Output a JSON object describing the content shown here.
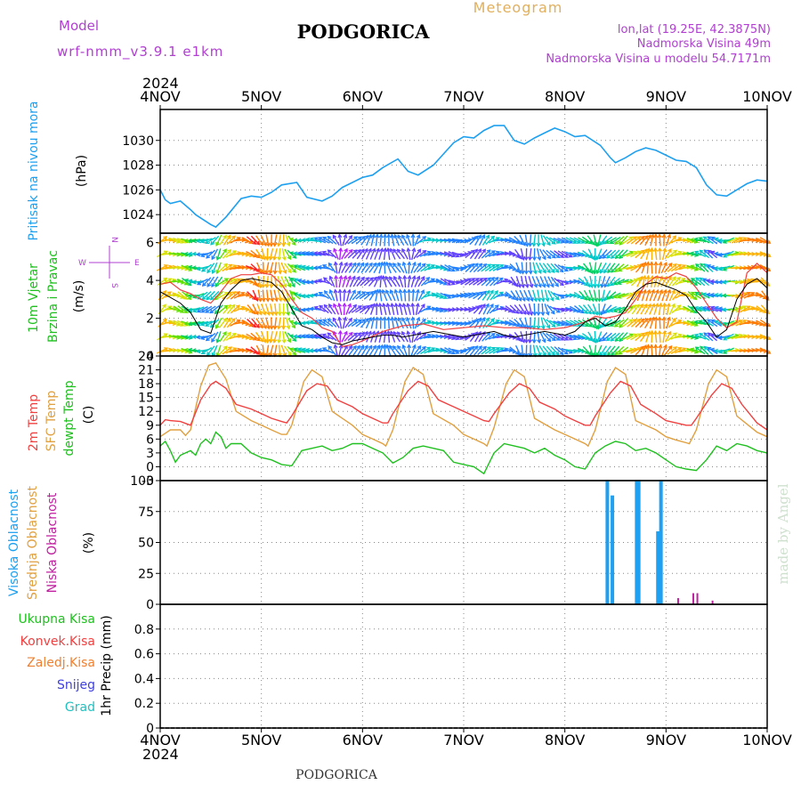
{
  "header": {
    "model_label": "Model",
    "model_name": "wrf-nmm_v3.9.1  e1km",
    "station": "PODGORICA",
    "product": "Meteogram",
    "lonlat": "lon,lat (19.25E, 42.3875N)",
    "elevation": "Nadmorska Visina 49m",
    "model_elevation": "Nadmorska Visina u modelu 54.7171m",
    "year_top": "2024",
    "year_bottom": "2024",
    "footer_station": "PODGORICA",
    "credit": "made by Angel"
  },
  "colors": {
    "pressure": "#1ea0f0",
    "temp2m": "#f04040",
    "sfc_temp": "#e0a040",
    "dewpt": "#20c020",
    "high_cloud": "#20a0f0",
    "mid_cloud": "#e0a040",
    "low_cloud": "#c020a0",
    "wind_speed": "#000000",
    "gust": "#f04040",
    "title_purple": "#b040d0",
    "title_gold": "#e0b060"
  },
  "chart_data": [
    {
      "type": "line",
      "title": "",
      "ylabel": "(hPa)",
      "side_label": "Pritisak na nivou mora",
      "ylim": [
        1022.5,
        1032.5
      ],
      "yticks": [
        1024,
        1026,
        1028,
        1030
      ],
      "x_range_days": [
        0,
        6
      ],
      "x_ticks": [
        "4NOV",
        "5NOV",
        "6NOV",
        "7NOV",
        "8NOV",
        "9NOV",
        "10NOV"
      ],
      "series": [
        {
          "key": "pressure",
          "x": [
            0,
            0.05,
            0.1,
            0.2,
            0.3,
            0.35,
            0.5,
            0.55,
            0.65,
            0.8,
            0.9,
            1.0,
            1.1,
            1.2,
            1.35,
            1.45,
            1.6,
            1.7,
            1.8,
            1.9,
            2.0,
            2.1,
            2.2,
            2.35,
            2.45,
            2.55,
            2.7,
            2.8,
            2.9,
            3.0,
            3.1,
            3.2,
            3.3,
            3.4,
            3.5,
            3.6,
            3.7,
            3.8,
            3.9,
            4.0,
            4.1,
            4.2,
            4.35,
            4.45,
            4.5,
            4.6,
            4.7,
            4.8,
            4.9,
            5.0,
            5.1,
            5.2,
            5.3,
            5.4,
            5.5,
            5.6,
            5.7,
            5.8,
            5.9,
            6.0
          ],
          "values": [
            1026.0,
            1025.2,
            1024.9,
            1025.1,
            1024.4,
            1024.0,
            1023.2,
            1023.0,
            1023.8,
            1025.3,
            1025.5,
            1025.4,
            1025.8,
            1026.4,
            1026.6,
            1025.4,
            1025.1,
            1025.5,
            1026.2,
            1026.6,
            1027.0,
            1027.2,
            1027.8,
            1028.5,
            1027.5,
            1027.2,
            1028.0,
            1028.9,
            1029.8,
            1030.3,
            1030.2,
            1030.8,
            1031.2,
            1031.2,
            1030.0,
            1029.7,
            1030.2,
            1030.6,
            1031.0,
            1030.7,
            1030.3,
            1030.4,
            1029.6,
            1028.6,
            1028.2,
            1028.6,
            1029.1,
            1029.4,
            1029.2,
            1028.8,
            1028.4,
            1028.3,
            1027.8,
            1026.4,
            1025.6,
            1025.5,
            1026.0,
            1026.5,
            1026.8,
            1026.7
          ]
        }
      ]
    },
    {
      "type": "line",
      "title": "",
      "ylabel": "(m/s)",
      "side_labels": [
        "10m Vjetar",
        "Brzina i Pravac"
      ],
      "compass_labels": [
        "W",
        "E",
        "N",
        "S"
      ],
      "ylim": [
        0,
        6.5
      ],
      "yticks": [
        0,
        2,
        4,
        6
      ],
      "x_range_days": [
        0,
        6
      ],
      "series": [
        {
          "key": "wind_speed",
          "x": [
            0,
            0.1,
            0.2,
            0.3,
            0.4,
            0.5,
            0.6,
            0.7,
            0.8,
            0.9,
            1.0,
            1.1,
            1.2,
            1.3,
            1.4,
            1.5,
            1.6,
            1.7,
            1.8,
            1.9,
            2.0,
            2.1,
            2.2,
            2.3,
            2.4,
            2.5,
            2.6,
            2.7,
            2.8,
            2.9,
            3.0,
            3.1,
            3.2,
            3.3,
            3.4,
            3.5,
            3.6,
            3.7,
            3.8,
            3.9,
            4.0,
            4.1,
            4.2,
            4.3,
            4.4,
            4.5,
            4.6,
            4.7,
            4.8,
            4.9,
            5.0,
            5.1,
            5.2,
            5.3,
            5.4,
            5.5,
            5.6,
            5.7,
            5.8,
            5.9,
            6.0
          ],
          "values": [
            3.4,
            3.1,
            2.8,
            2.3,
            1.4,
            1.2,
            2.8,
            3.5,
            4.0,
            4.1,
            4.0,
            3.9,
            3.4,
            2.5,
            1.6,
            1.4,
            1.0,
            0.7,
            0.6,
            0.8,
            0.9,
            1.0,
            1.1,
            1.1,
            1.0,
            1.1,
            1.2,
            1.3,
            1.2,
            1.1,
            1.0,
            1.1,
            1.2,
            1.3,
            1.1,
            1.0,
            1.1,
            1.2,
            1.3,
            1.2,
            1.1,
            1.3,
            1.8,
            2.0,
            1.6,
            1.8,
            2.5,
            3.4,
            3.8,
            3.9,
            3.7,
            3.5,
            3.2,
            2.4,
            1.8,
            1.0,
            1.4,
            3.0,
            3.8,
            4.1,
            3.6
          ]
        },
        {
          "key": "gust",
          "x": [
            0,
            0.1,
            0.2,
            0.3,
            0.4,
            0.5,
            0.6,
            0.7,
            0.8,
            0.9,
            1.0,
            1.1,
            1.2,
            1.3,
            1.4,
            1.5,
            1.6,
            1.7,
            1.8,
            1.9,
            2.0,
            2.2,
            2.4,
            2.6,
            2.8,
            3.0,
            3.2,
            3.4,
            3.6,
            3.8,
            4.0,
            4.2,
            4.3,
            4.4,
            4.5,
            4.6,
            4.7,
            4.8,
            4.9,
            5.0,
            5.1,
            5.2,
            5.3,
            5.4,
            5.5,
            5.6,
            5.7,
            5.8,
            5.9,
            6.0
          ],
          "values": [
            3.8,
            3.9,
            3.5,
            3.3,
            3.0,
            2.8,
            3.4,
            4.1,
            4.3,
            4.3,
            4.4,
            4.3,
            3.8,
            3.0,
            2.3,
            2.0,
            1.5,
            1.3,
            0.5,
            0.6,
            0.8,
            1.3,
            1.6,
            1.7,
            1.4,
            1.5,
            1.6,
            1.5,
            1.5,
            1.4,
            1.5,
            1.8,
            2.1,
            2.0,
            2.1,
            2.3,
            3.0,
            3.8,
            4.2,
            4.1,
            4.4,
            4.2,
            3.6,
            2.8,
            2.0,
            1.5,
            1.8,
            4.4,
            4.9,
            4.4
          ]
        }
      ]
    },
    {
      "type": "line",
      "title": "",
      "ylabel": "(C)",
      "side_labels": [
        "2m Temp",
        "SFC Temp",
        "dewpt Temp"
      ],
      "ylim": [
        -3,
        24
      ],
      "yticks": [
        -3,
        0,
        3,
        6,
        9,
        12,
        15,
        18,
        21,
        24
      ],
      "x_range_days": [
        0,
        6
      ],
      "series": [
        {
          "key": "temp2m",
          "x": [
            0,
            0.05,
            0.1,
            0.2,
            0.3,
            0.4,
            0.5,
            0.55,
            0.65,
            0.75,
            0.9,
            1.0,
            1.1,
            1.2,
            1.25,
            1.3,
            1.45,
            1.55,
            1.65,
            1.75,
            1.9,
            2.0,
            2.1,
            2.2,
            2.25,
            2.3,
            2.45,
            2.55,
            2.65,
            2.75,
            2.9,
            3.0,
            3.1,
            3.2,
            3.25,
            3.3,
            3.45,
            3.55,
            3.65,
            3.75,
            3.9,
            4.0,
            4.1,
            4.2,
            4.25,
            4.3,
            4.45,
            4.55,
            4.65,
            4.75,
            4.9,
            5.0,
            5.1,
            5.2,
            5.25,
            5.3,
            5.45,
            5.55,
            5.65,
            5.75,
            5.9,
            6.0
          ],
          "values": [
            9.0,
            10.2,
            10.0,
            9.8,
            9.0,
            14.5,
            17.8,
            18.5,
            17.0,
            13.5,
            12.5,
            11.5,
            10.5,
            9.8,
            9.5,
            11.0,
            16.5,
            18.0,
            17.5,
            14.5,
            13.0,
            11.5,
            10.5,
            9.5,
            9.5,
            11.5,
            16.5,
            18.5,
            17.5,
            14.5,
            13.0,
            12.0,
            11.0,
            10.0,
            9.8,
            11.5,
            16.0,
            18.0,
            17.0,
            14.0,
            12.5,
            11.0,
            10.0,
            9.0,
            9.0,
            11.0,
            16.0,
            18.5,
            17.5,
            13.5,
            11.5,
            10.0,
            9.5,
            9.0,
            9.0,
            10.5,
            15.5,
            18.0,
            17.0,
            13.5,
            9.5,
            8.0
          ]
        },
        {
          "key": "sfc_temp",
          "x": [
            0,
            0.1,
            0.2,
            0.25,
            0.3,
            0.4,
            0.48,
            0.55,
            0.65,
            0.75,
            0.9,
            1.0,
            1.1,
            1.2,
            1.25,
            1.3,
            1.42,
            1.5,
            1.6,
            1.7,
            1.9,
            2.0,
            2.1,
            2.2,
            2.23,
            2.3,
            2.42,
            2.5,
            2.6,
            2.7,
            2.9,
            3.0,
            3.1,
            3.2,
            3.23,
            3.3,
            3.42,
            3.5,
            3.6,
            3.7,
            3.9,
            4.0,
            4.1,
            4.2,
            4.23,
            4.3,
            4.42,
            4.5,
            4.6,
            4.7,
            4.9,
            5.0,
            5.1,
            5.2,
            5.23,
            5.3,
            5.42,
            5.5,
            5.6,
            5.7,
            5.9,
            6.0
          ],
          "values": [
            6.5,
            8.0,
            8.0,
            6.8,
            8.0,
            17.5,
            22.0,
            22.5,
            19.0,
            12.0,
            10.0,
            9.0,
            8.0,
            7.0,
            7.0,
            9.0,
            18.5,
            21.0,
            19.5,
            12.0,
            9.0,
            7.0,
            6.0,
            5.0,
            4.5,
            8.0,
            18.5,
            21.5,
            20.0,
            11.5,
            9.0,
            7.0,
            6.0,
            5.0,
            4.5,
            8.5,
            18.0,
            21.0,
            19.5,
            10.5,
            8.0,
            7.0,
            6.0,
            5.0,
            4.5,
            8.0,
            18.5,
            21.5,
            20.0,
            10.0,
            8.0,
            6.5,
            5.8,
            5.2,
            5.0,
            8.0,
            18.0,
            21.0,
            19.5,
            11.0,
            7.5,
            6.5
          ]
        },
        {
          "key": "dewpt",
          "x": [
            0,
            0.05,
            0.1,
            0.15,
            0.2,
            0.3,
            0.35,
            0.4,
            0.45,
            0.5,
            0.55,
            0.6,
            0.65,
            0.7,
            0.8,
            0.9,
            1.0,
            1.1,
            1.2,
            1.3,
            1.4,
            1.5,
            1.6,
            1.7,
            1.8,
            1.9,
            2.0,
            2.1,
            2.2,
            2.3,
            2.4,
            2.5,
            2.6,
            2.7,
            2.8,
            2.9,
            3.0,
            3.1,
            3.2,
            3.3,
            3.4,
            3.5,
            3.6,
            3.7,
            3.8,
            3.9,
            4.0,
            4.1,
            4.2,
            4.3,
            4.4,
            4.5,
            4.6,
            4.7,
            4.8,
            4.9,
            5.0,
            5.1,
            5.2,
            5.3,
            5.4,
            5.5,
            5.6,
            5.7,
            5.8,
            5.9,
            6.0
          ],
          "values": [
            4.5,
            5.5,
            3.5,
            1.0,
            2.5,
            3.5,
            2.5,
            5.0,
            6.0,
            5.0,
            7.5,
            6.5,
            4.0,
            5.0,
            5.0,
            3.0,
            2.0,
            1.5,
            0.5,
            0.2,
            3.5,
            4.0,
            4.5,
            3.5,
            4.0,
            5.0,
            5.0,
            4.0,
            3.0,
            0.8,
            2.0,
            4.0,
            4.5,
            4.0,
            3.5,
            1.0,
            0.5,
            0.0,
            -1.5,
            3.0,
            5.0,
            4.5,
            4.0,
            3.0,
            4.0,
            2.5,
            1.5,
            0.0,
            -0.5,
            3.0,
            4.5,
            5.5,
            5.0,
            3.5,
            4.0,
            3.0,
            1.5,
            0.0,
            -0.5,
            -0.8,
            1.5,
            4.5,
            3.5,
            5.0,
            4.5,
            3.5,
            3.0
          ]
        }
      ]
    },
    {
      "type": "bar",
      "title": "",
      "ylabel": "(%)",
      "side_labels": [
        "Visoka Oblacnost",
        "Srednja Oblacnost",
        "Niska Oblacnost"
      ],
      "ylim": [
        0,
        100
      ],
      "yticks": [
        0,
        25,
        50,
        75,
        100
      ],
      "x_range_days": [
        0,
        6
      ],
      "series": [
        {
          "key": "high_cloud",
          "x": [
            4.42,
            4.47,
            4.71,
            4.73,
            4.92,
            4.95
          ],
          "values": [
            100,
            88,
            100,
            100,
            59,
            100
          ]
        },
        {
          "key": "low_cloud",
          "x": [
            5.12,
            5.27,
            5.31,
            5.46
          ],
          "values": [
            5,
            9,
            9,
            3
          ]
        }
      ]
    },
    {
      "type": "bar",
      "title": "",
      "ylabel": "1hr Precip (mm)",
      "side_labels": [
        "Ukupna Kisa",
        "Konvek.Kisa",
        "Zaledj.Kisa",
        "Snijeg",
        "Grad"
      ],
      "ylim": [
        0,
        1
      ],
      "yticks": [
        0,
        0.2,
        0.4,
        0.6,
        0.8
      ],
      "x_range_days": [
        0,
        6
      ],
      "series": []
    }
  ]
}
